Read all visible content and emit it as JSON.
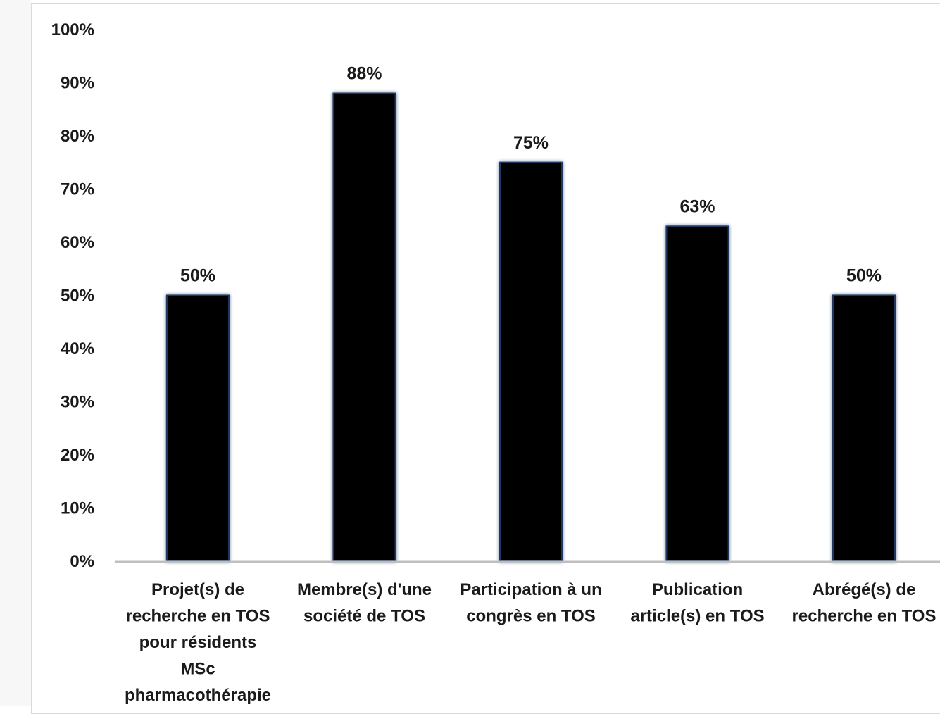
{
  "chart_data": {
    "type": "bar",
    "title": "",
    "xlabel": "",
    "ylabel": "",
    "categories": [
      [
        "Projet(s) de",
        "recherche en TOS",
        "pour résidents",
        "MSc",
        "pharmacothérapie"
      ],
      [
        "Membre(s) d'une",
        "société de TOS"
      ],
      [
        "Participation à un",
        "congrès en TOS"
      ],
      [
        "Publication",
        "article(s) en TOS"
      ],
      [
        "Abrégé(s) de",
        "recherche en TOS"
      ]
    ],
    "values": [
      50,
      88,
      75,
      63,
      50
    ],
    "value_labels": [
      "50%",
      "88%",
      "75%",
      "63%",
      "50%"
    ],
    "ylim": [
      0,
      100
    ],
    "yticks": [
      0,
      10,
      20,
      30,
      40,
      50,
      60,
      70,
      80,
      90,
      100
    ],
    "ytick_labels": [
      "0%",
      "10%",
      "20%",
      "30%",
      "40%",
      "50%",
      "60%",
      "70%",
      "80%",
      "90%",
      "100%"
    ],
    "grid": false,
    "legend": "none",
    "colors": {
      "bar": "#000000",
      "bar_glow": "#1f3864",
      "axis": "#bfbfbf",
      "text": "#1a1a1a"
    }
  }
}
